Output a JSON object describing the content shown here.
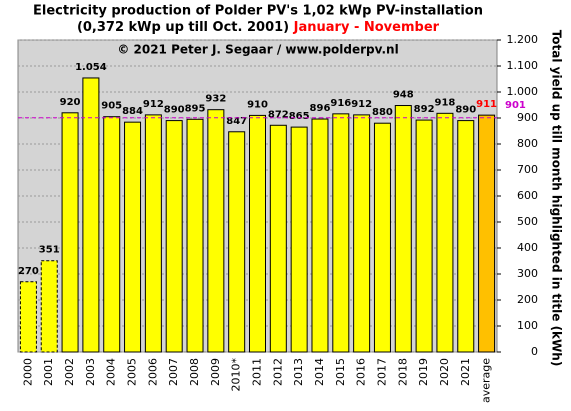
{
  "chart_data": {
    "type": "bar",
    "title": "Electricity production  of Polder PV's 1,02 kWp PV-installation",
    "subtitle": "(0,372 kWp up till Oct. 2001)",
    "period": "January - November",
    "period_color": "#ff0000",
    "annotation": "© 2021 Peter J. Segaar / www.polderpv.nl",
    "y_axis_label": "Total yield up till month highlighted in title (kWh)",
    "categories": [
      "2000",
      "2001",
      "2002",
      "2003",
      "2004",
      "2005",
      "2006",
      "2007",
      "2008",
      "2009",
      "2010*",
      "2011",
      "2012",
      "2013",
      "2014",
      "2015",
      "2016",
      "2017",
      "2018",
      "2019",
      "2020",
      "2021",
      "average"
    ],
    "values": [
      270,
      351,
      920,
      1054,
      905,
      884,
      912,
      890,
      895,
      932,
      847,
      910,
      872,
      865,
      896,
      916,
      912,
      880,
      948,
      892,
      918,
      890,
      911
    ],
    "value_labels": [
      "270",
      "351",
      "920",
      "1.054",
      "905",
      "884",
      "912",
      "890",
      "895",
      "932",
      "847",
      "910",
      "872",
      "865",
      "896",
      "916",
      "912",
      "880",
      "948",
      "892",
      "918",
      "890",
      "911"
    ],
    "colors": [
      "#ffff00",
      "#ffff00",
      "#ffff00",
      "#ffff00",
      "#ffff00",
      "#ffff00",
      "#ffff00",
      "#ffff00",
      "#ffff00",
      "#ffff00",
      "#ffff00",
      "#ffff00",
      "#ffff00",
      "#ffff00",
      "#ffff00",
      "#ffff00",
      "#ffff00",
      "#ffff00",
      "#ffff00",
      "#ffff00",
      "#ffff00",
      "#ffff00",
      "#ffc000"
    ],
    "outline_dashed": [
      true,
      true,
      false,
      false,
      false,
      false,
      false,
      false,
      false,
      false,
      false,
      false,
      false,
      false,
      false,
      false,
      false,
      false,
      false,
      false,
      false,
      false,
      false
    ],
    "label_colors": [
      "#000000",
      "#000000",
      "#000000",
      "#000000",
      "#000000",
      "#000000",
      "#000000",
      "#000000",
      "#000000",
      "#000000",
      "#000000",
      "#000000",
      "#000000",
      "#000000",
      "#000000",
      "#000000",
      "#000000",
      "#000000",
      "#000000",
      "#000000",
      "#000000",
      "#000000",
      "#ff0000"
    ],
    "reference_line": {
      "value": 901,
      "color": "#cc00cc"
    },
    "ylim": [
      0,
      1200
    ],
    "yticks": [
      0,
      100,
      200,
      300,
      400,
      500,
      600,
      700,
      800,
      900,
      {
        "value": 1000,
        "label": "1.000"
      },
      {
        "value": 1100,
        "label": "1.100"
      },
      {
        "value": 1200,
        "label": "1.200"
      }
    ],
    "grid": true
  }
}
